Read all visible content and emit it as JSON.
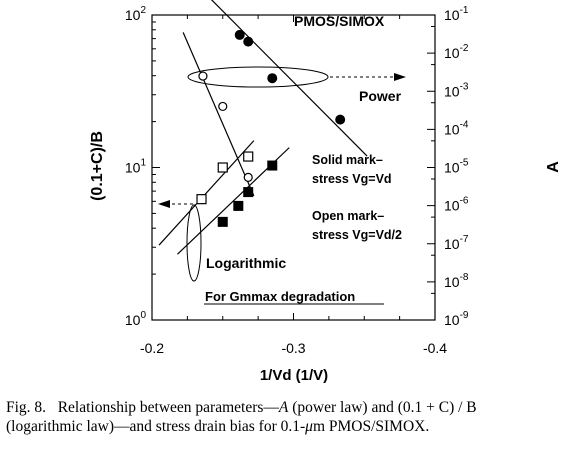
{
  "chart_data": {
    "type": "scatter",
    "title": "PMOS/SIMOX",
    "xlabel": "1/Vd (1/V)",
    "ylabel_left": "(0.1+C)/B",
    "ylabel_right": "A",
    "x_ticks": [
      "-0.2",
      "-0.3",
      "-0.4"
    ],
    "xlim": [
      -0.2,
      -0.4
    ],
    "left_axis": {
      "scale": "log",
      "ylim": [
        1,
        100
      ],
      "tick_base": "10",
      "tick_exponents": [
        "0",
        "1",
        "2"
      ]
    },
    "right_axis": {
      "scale": "log",
      "ylim": [
        1e-09,
        0.1
      ],
      "tick_base": "10",
      "tick_exponents": [
        "-1",
        "-2",
        "-3",
        "-4",
        "-5",
        "-6",
        "-7",
        "-8",
        "-9"
      ]
    },
    "annotations": {
      "power": "Power",
      "logarithmic": "Logarithmic",
      "solid_1": "Solid mark–",
      "solid_2": "stress Vg=Vd",
      "open_1": "Open mark–",
      "open_2": "stress Vg=Vd/2",
      "degradation": "For Gmmax degradation"
    },
    "series": [
      {
        "name": "Power law, solid mark (stress Vg=Vd)",
        "axis": "right",
        "marker": "filled-circle",
        "points": [
          [
            -0.262,
            0.03
          ],
          [
            -0.268,
            0.02
          ],
          [
            -0.285,
            0.0022
          ],
          [
            -0.333,
            0.00018
          ]
        ],
        "fit": [
          [
            -0.24,
            0.3
          ],
          [
            -0.352,
            2e-05
          ]
        ]
      },
      {
        "name": "Power law, open mark (stress Vg=Vd/2)",
        "axis": "right",
        "marker": "open-circle",
        "points": [
          [
            -0.236,
            0.0025
          ],
          [
            -0.25,
            0.0004
          ],
          [
            -0.268,
            5.5e-06
          ]
        ],
        "fit": [
          [
            -0.222,
            0.035
          ],
          [
            -0.272,
            1.8e-06
          ]
        ]
      },
      {
        "name": "Logarithmic law, open mark (stress Vg=Vd/2)",
        "axis": "left",
        "marker": "open-square",
        "points": [
          [
            -0.235,
            6.2
          ],
          [
            -0.25,
            10
          ],
          [
            -0.268,
            11.8
          ]
        ],
        "fit": [
          [
            -0.205,
            3.1
          ],
          [
            -0.272,
            15
          ]
        ]
      },
      {
        "name": "Logarithmic law, solid mark (stress Vg=Vd)",
        "axis": "left",
        "marker": "filled-square",
        "points": [
          [
            -0.25,
            4.4
          ],
          [
            -0.261,
            5.6
          ],
          [
            -0.268,
            6.9
          ],
          [
            -0.285,
            10.3
          ]
        ],
        "fit": [
          [
            -0.218,
            2.7
          ],
          [
            -0.297,
            13.5
          ]
        ]
      }
    ]
  },
  "caption": {
    "fig_label": "Fig. 8.",
    "text_1": "Relationship between parameters—",
    "var_a": "A",
    "text_2": " (power law) and ",
    "expr": "(0.1 + C) / B",
    "text_3": "(logarithmic law)—and stress drain bias for 0.1-",
    "mu": "μ",
    "text_4": "m PMOS/SIMOX."
  }
}
